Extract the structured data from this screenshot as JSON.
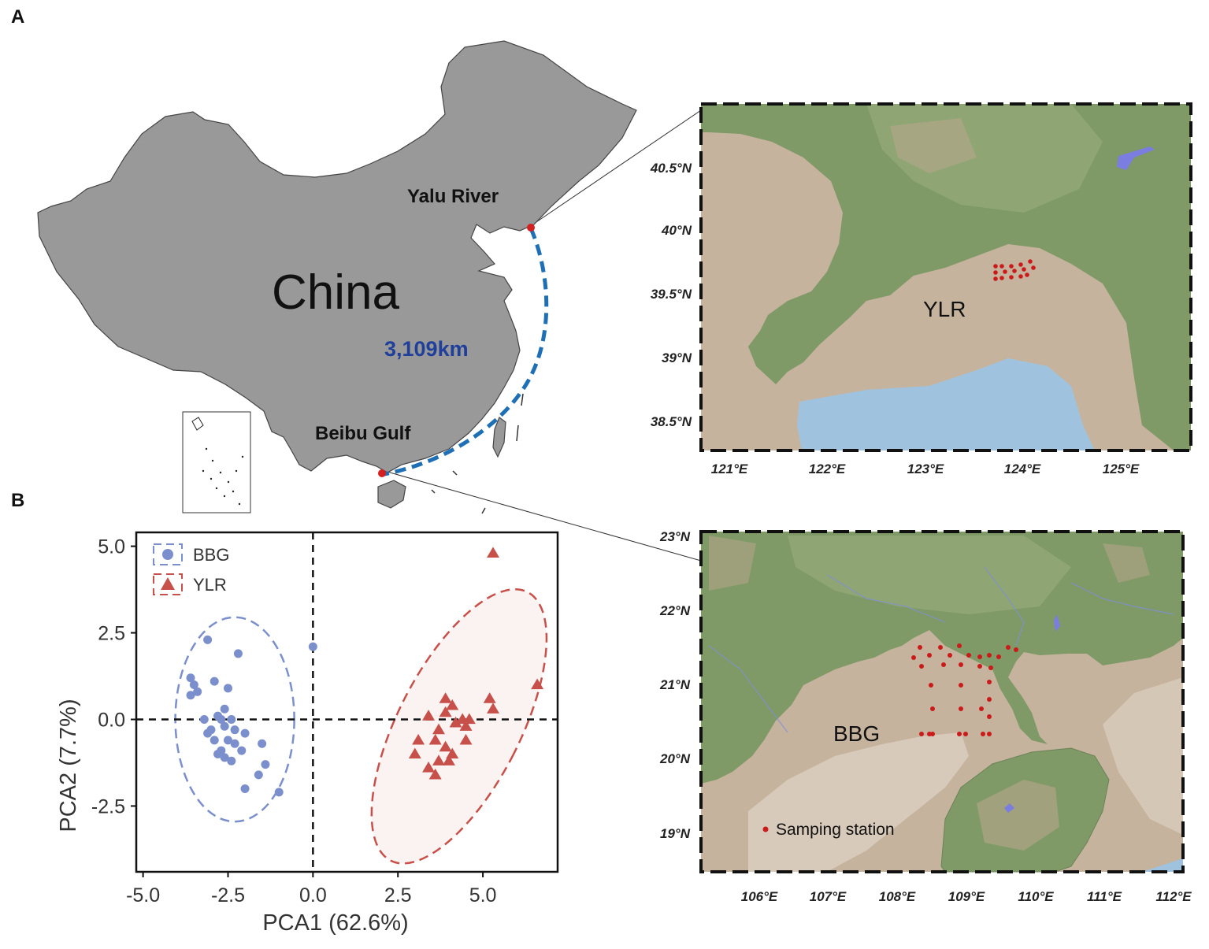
{
  "panels": {
    "a": "A",
    "b": "B"
  },
  "overview_map": {
    "country_label": "China",
    "places": [
      {
        "name": "Yalu River",
        "color": "#d42020"
      },
      {
        "name": "Beibu Gulf",
        "color": "#d42020"
      }
    ],
    "distance_label": "3,109km",
    "route_color": "#1f6fb5",
    "land_color": "#999999"
  },
  "map_ylr": {
    "label": "YLR",
    "lat_ticks": [
      "40.5°N",
      "40°N",
      "39.5°N",
      "39°N",
      "38.5°N"
    ],
    "lon_ticks": [
      "121°E",
      "122°E",
      "123°E",
      "124°E",
      "125°E"
    ],
    "station_color": "#cc1a1a"
  },
  "map_bbg": {
    "label": "BBG",
    "lat_ticks": [
      "23°N",
      "22°N",
      "21°N",
      "20°N",
      "19°N"
    ],
    "lon_ticks": [
      "106°E",
      "107°E",
      "108°E",
      "109°E",
      "110°E",
      "111°E",
      "112°E"
    ],
    "legend_label": "Samping station",
    "station_color": "#cc1a1a"
  },
  "chart_data": {
    "type": "scatter",
    "xlabel": "PCA1 (62.6%)",
    "ylabel": "PCA2 (7.7%)",
    "xlim": [
      -5.2,
      7.2
    ],
    "ylim": [
      -4.4,
      5.4
    ],
    "x_ticks": [
      -5.0,
      -2.5,
      0.0,
      2.5,
      5.0
    ],
    "x_tick_labels": [
      "-5.0",
      "-2.5",
      "0.0",
      "2.5",
      "5.0"
    ],
    "y_ticks": [
      5.0,
      2.5,
      0.0,
      -2.5
    ],
    "y_tick_labels": [
      "5.0",
      "2.5",
      "0.0",
      "-2.5"
    ],
    "grid": false,
    "legend_position": "top-left",
    "series": [
      {
        "name": "BBG",
        "marker": "circle",
        "color": "#7b8fcc",
        "ellipse": {
          "cx": -2.3,
          "cy": 0.0,
          "rx": 1.75,
          "ry": 2.95,
          "angle": 0
        },
        "points": [
          [
            -3.1,
            2.3
          ],
          [
            -2.2,
            1.9
          ],
          [
            0.0,
            2.1
          ],
          [
            -3.6,
            1.2
          ],
          [
            -3.5,
            1.0
          ],
          [
            -3.4,
            0.8
          ],
          [
            -3.6,
            0.7
          ],
          [
            -2.9,
            1.1
          ],
          [
            -2.5,
            0.9
          ],
          [
            -2.6,
            0.3
          ],
          [
            -2.8,
            0.1
          ],
          [
            -3.2,
            0.0
          ],
          [
            -2.7,
            0.0
          ],
          [
            -2.4,
            0.0
          ],
          [
            -3.0,
            -0.3
          ],
          [
            -2.6,
            -0.2
          ],
          [
            -2.0,
            -0.4
          ],
          [
            -2.5,
            -0.6
          ],
          [
            -2.9,
            -0.6
          ],
          [
            -2.3,
            -0.7
          ],
          [
            -2.1,
            -0.9
          ],
          [
            -2.7,
            -0.9
          ],
          [
            -1.5,
            -0.7
          ],
          [
            -2.8,
            -1.0
          ],
          [
            -2.6,
            -1.1
          ],
          [
            -2.4,
            -1.2
          ],
          [
            -1.4,
            -1.3
          ],
          [
            -1.6,
            -1.6
          ],
          [
            -2.0,
            -2.0
          ],
          [
            -1.0,
            -2.1
          ],
          [
            -2.3,
            -0.3
          ],
          [
            -3.1,
            -0.4
          ]
        ]
      },
      {
        "name": "YLR",
        "marker": "triangle",
        "color": "#c8504a",
        "ellipse": {
          "cx": 4.3,
          "cy": -0.2,
          "rx": 1.8,
          "ry": 4.35,
          "angle": 27
        },
        "points": [
          [
            5.3,
            4.8
          ],
          [
            6.6,
            1.0
          ],
          [
            3.9,
            0.6
          ],
          [
            5.2,
            0.6
          ],
          [
            4.1,
            0.4
          ],
          [
            3.9,
            0.2
          ],
          [
            5.3,
            0.3
          ],
          [
            3.4,
            0.1
          ],
          [
            4.4,
            0.0
          ],
          [
            4.6,
            0.0
          ],
          [
            4.2,
            -0.1
          ],
          [
            3.7,
            -0.3
          ],
          [
            4.5,
            -0.2
          ],
          [
            3.1,
            -0.6
          ],
          [
            3.6,
            -0.6
          ],
          [
            4.5,
            -0.6
          ],
          [
            3.9,
            -0.8
          ],
          [
            4.1,
            -1.0
          ],
          [
            3.0,
            -1.0
          ],
          [
            4.0,
            -1.2
          ],
          [
            3.7,
            -1.2
          ],
          [
            3.4,
            -1.4
          ],
          [
            3.6,
            -1.6
          ]
        ]
      }
    ]
  }
}
